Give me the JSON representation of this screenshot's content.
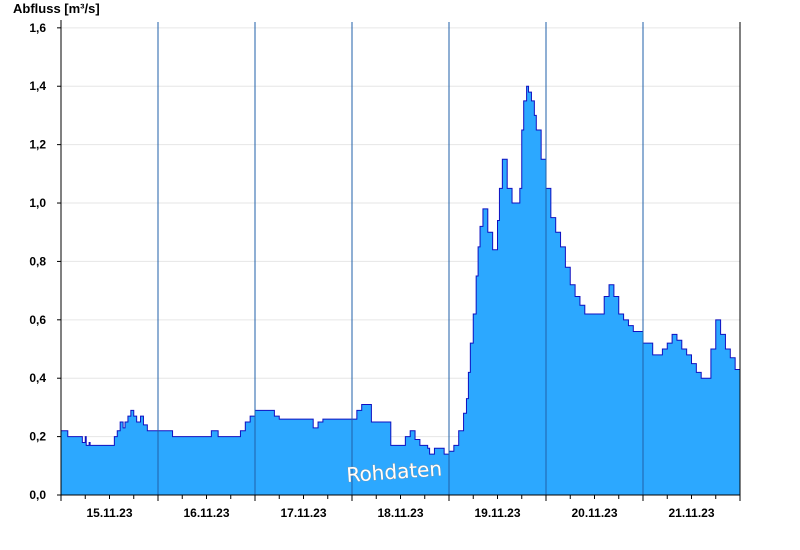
{
  "chart_data": {
    "type": "area",
    "title": "",
    "ylabel": "Abfluss [m³/s]",
    "xlabel": "",
    "ylim": [
      0,
      1.62
    ],
    "yticks": [
      0,
      0.2,
      0.4,
      0.6,
      0.8,
      1.0,
      1.2,
      1.4,
      1.6
    ],
    "ytick_labels": [
      "0,0",
      "0,2",
      "0,4",
      "0,6",
      "0,8",
      "1,0",
      "1,2",
      "1,4",
      "1,6"
    ],
    "xlim": [
      0,
      7
    ],
    "xticks": [
      0.5,
      1.5,
      2.5,
      3.5,
      4.5,
      5.5,
      6.5
    ],
    "xtick_labels": [
      "15.11.23",
      "16.11.23",
      "17.11.23",
      "18.11.23",
      "19.11.23",
      "20.11.23",
      "21.11.23"
    ],
    "day_separators": [
      1,
      2,
      3,
      4,
      5,
      6
    ],
    "grid": "horizontal",
    "fill_color": "#2ca8ff",
    "line_color": "#1010c0",
    "annotation": "Rohdaten",
    "x": [
      0,
      0.05,
      0.07,
      0.21,
      0.22,
      0.25,
      0.26,
      0.29,
      0.3,
      0.52,
      0.55,
      0.58,
      0.61,
      0.64,
      0.66,
      0.69,
      0.72,
      0.75,
      0.78,
      0.82,
      0.85,
      0.89,
      0.92,
      0.96,
      1.0,
      1.15,
      1.5,
      1.55,
      1.62,
      1.8,
      1.85,
      1.9,
      1.95,
      2.0,
      2.05,
      2.1,
      2.2,
      2.25,
      2.45,
      2.6,
      2.65,
      2.7,
      2.75,
      2.8,
      2.85,
      2.9,
      3.0,
      3.05,
      3.1,
      3.2,
      3.4,
      3.45,
      3.5,
      3.55,
      3.6,
      3.65,
      3.7,
      3.78,
      3.8,
      3.85,
      3.9,
      3.95,
      4.0,
      4.05,
      4.1,
      4.15,
      4.18,
      4.2,
      4.22,
      4.25,
      4.28,
      4.3,
      4.32,
      4.35,
      4.4,
      4.45,
      4.5,
      4.52,
      4.55,
      4.6,
      4.65,
      4.7,
      4.73,
      4.75,
      4.77,
      4.8,
      4.82,
      4.85,
      4.88,
      4.9,
      4.95,
      5.0,
      5.05,
      5.1,
      5.15,
      5.2,
      5.25,
      5.3,
      5.35,
      5.4,
      5.5,
      5.55,
      5.6,
      5.65,
      5.7,
      5.75,
      5.8,
      5.85,
      5.9,
      6.0,
      6.05,
      6.1,
      6.15,
      6.2,
      6.25,
      6.3,
      6.35,
      6.4,
      6.45,
      6.5,
      6.55,
      6.6,
      6.65,
      6.7,
      6.75,
      6.8,
      6.85,
      6.9,
      6.95,
      7.0
    ],
    "y": [
      0.22,
      0.22,
      0.2,
      0.2,
      0.18,
      0.2,
      0.17,
      0.18,
      0.17,
      0.17,
      0.2,
      0.22,
      0.25,
      0.23,
      0.25,
      0.27,
      0.29,
      0.27,
      0.25,
      0.27,
      0.24,
      0.22,
      0.22,
      0.22,
      0.22,
      0.2,
      0.2,
      0.22,
      0.2,
      0.2,
      0.22,
      0.25,
      0.27,
      0.29,
      0.29,
      0.29,
      0.27,
      0.26,
      0.26,
      0.23,
      0.25,
      0.26,
      0.26,
      0.26,
      0.26,
      0.26,
      0.26,
      0.29,
      0.31,
      0.25,
      0.17,
      0.17,
      0.17,
      0.2,
      0.22,
      0.19,
      0.17,
      0.16,
      0.14,
      0.16,
      0.16,
      0.14,
      0.15,
      0.17,
      0.22,
      0.28,
      0.33,
      0.42,
      0.52,
      0.62,
      0.75,
      0.85,
      0.92,
      0.98,
      0.9,
      0.84,
      0.94,
      1.05,
      1.15,
      1.05,
      1.0,
      1.0,
      1.05,
      1.25,
      1.35,
      1.4,
      1.38,
      1.35,
      1.3,
      1.25,
      1.15,
      1.05,
      0.95,
      0.9,
      0.85,
      0.78,
      0.72,
      0.68,
      0.65,
      0.62,
      0.62,
      0.62,
      0.68,
      0.72,
      0.68,
      0.62,
      0.6,
      0.58,
      0.56,
      0.52,
      0.52,
      0.48,
      0.48,
      0.5,
      0.52,
      0.55,
      0.53,
      0.5,
      0.48,
      0.45,
      0.42,
      0.4,
      0.4,
      0.5,
      0.6,
      0.55,
      0.5,
      0.47,
      0.43,
      0.38
    ]
  }
}
